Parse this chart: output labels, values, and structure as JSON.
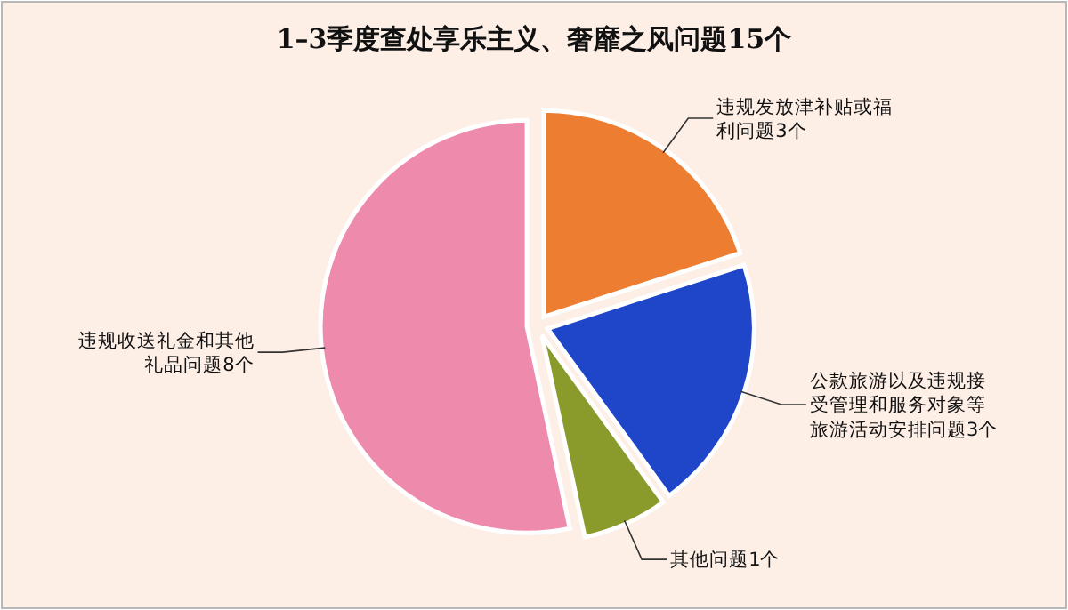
{
  "chart_data": {
    "type": "pie",
    "title": "1–3季度查处享乐主义、奢靡之风问题15个",
    "categories": [
      "违规发放津补贴或福利问题3个",
      "公款旅游以及违规接受管理和服务对象等旅游活动安排问题3个",
      "其他问题1个",
      "违规收送礼金和其他礼品问题8个"
    ],
    "values": [
      3,
      3,
      1,
      8
    ],
    "colors": [
      "#ed7d31",
      "#1f45c8",
      "#8a9a2b",
      "#ee8aab"
    ]
  }
}
